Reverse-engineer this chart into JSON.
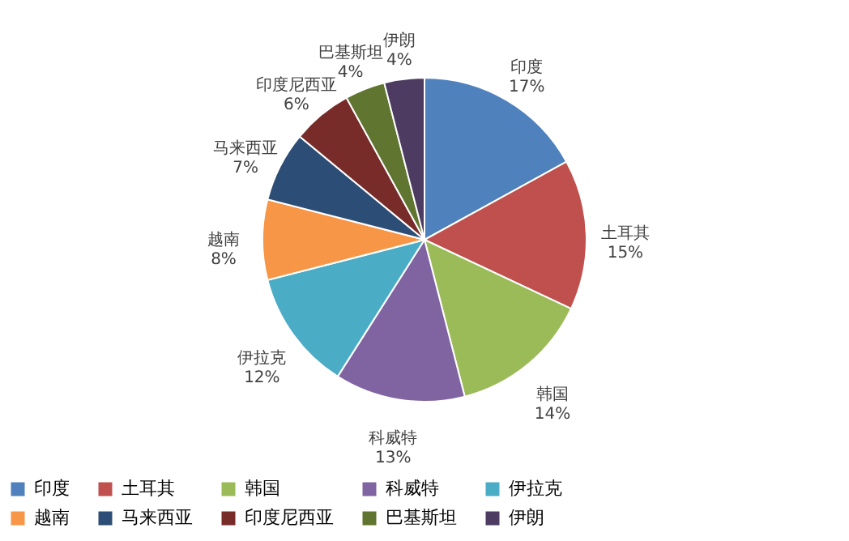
{
  "chart_data": {
    "type": "pie",
    "categories": [
      "印度",
      "土耳其",
      "韩国",
      "科威特",
      "伊拉克",
      "越南",
      "马来西亚",
      "印度尼西亚",
      "巴基斯坦",
      "伊朗"
    ],
    "values": [
      17,
      15,
      14,
      13,
      12,
      8,
      7,
      6,
      4,
      4
    ],
    "value_labels": [
      "17%",
      "15%",
      "14%",
      "13%",
      "12%",
      "8%",
      "7%",
      "6%",
      "4%",
      "4%"
    ],
    "colors": [
      "#4f81bd",
      "#c0504d",
      "#9bbb59",
      "#8064a2",
      "#4bacc6",
      "#f79646",
      "#2c4d75",
      "#772c2a",
      "#5f7530",
      "#4d3b62"
    ],
    "legend": "bottom"
  }
}
